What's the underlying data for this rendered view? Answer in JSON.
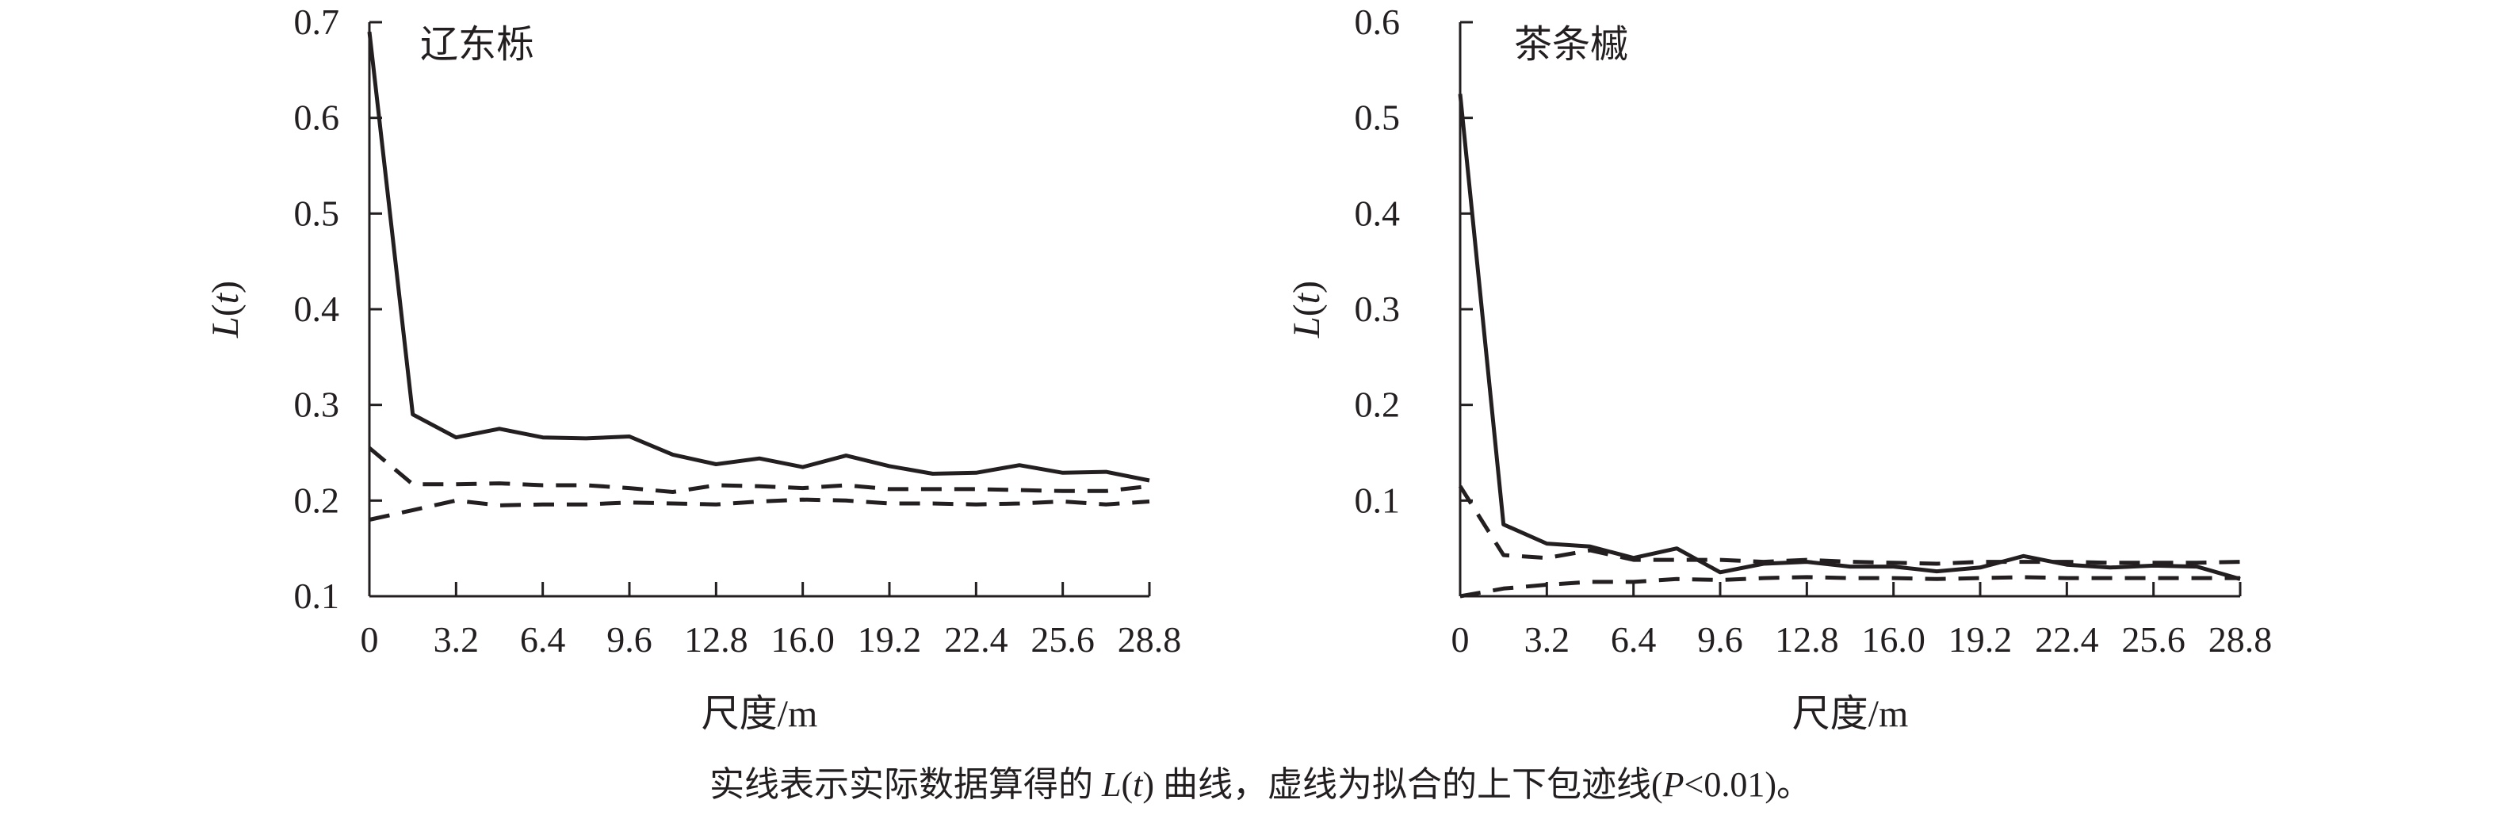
{
  "caption": {
    "text_before": "实线表示实际数据算得的 ",
    "L": "L",
    "open": "(",
    "t": "t",
    "close": ")",
    "text_after": " 曲线，虚线为拟合的上下包迹线(",
    "P": "P",
    "text_end": "<0.01)。"
  },
  "colors": {
    "line": "#231f20"
  },
  "chart_data": [
    {
      "type": "line",
      "title": "辽东栎",
      "xlabel": "尺度/m",
      "ylabel_L": "L",
      "ylabel_t": "t",
      "ylim": [
        0.1,
        0.7
      ],
      "yticks": [
        "0.1",
        "0.2",
        "0.3",
        "0.4",
        "0.5",
        "0.6",
        "0.7"
      ],
      "xticks": [
        "0",
        "3.2",
        "6.4",
        "9.6",
        "12.8",
        "16.0",
        "19.2",
        "22.4",
        "25.6",
        "28.8"
      ],
      "x": [
        0,
        1.6,
        3.2,
        4.8,
        6.4,
        8.0,
        9.6,
        11.2,
        12.8,
        14.4,
        16.0,
        17.6,
        19.2,
        20.8,
        22.4,
        24.0,
        25.6,
        27.2,
        28.8
      ],
      "series": [
        {
          "name": "actual",
          "style": "solid",
          "values": [
            0.69,
            0.29,
            0.266,
            0.275,
            0.266,
            0.265,
            0.267,
            0.248,
            0.238,
            0.244,
            0.235,
            0.247,
            0.236,
            0.228,
            0.229,
            0.237,
            0.229,
            0.23,
            0.221
          ]
        },
        {
          "name": "upper envelope",
          "style": "dashed",
          "values": [
            0.255,
            0.217,
            0.217,
            0.218,
            0.216,
            0.216,
            0.213,
            0.209,
            0.216,
            0.215,
            0.213,
            0.216,
            0.212,
            0.212,
            0.212,
            0.211,
            0.21,
            0.21,
            0.215
          ]
        },
        {
          "name": "lower envelope",
          "style": "dashed",
          "values": [
            0.18,
            0.19,
            0.2,
            0.195,
            0.196,
            0.196,
            0.198,
            0.197,
            0.196,
            0.199,
            0.201,
            0.2,
            0.197,
            0.197,
            0.196,
            0.197,
            0.199,
            0.196,
            0.199
          ]
        }
      ]
    },
    {
      "type": "line",
      "title": "茶条槭",
      "xlabel": "尺度/m",
      "ylabel_L": "L",
      "ylabel_t": "t",
      "ylim": [
        0,
        0.6
      ],
      "yticks": [
        "",
        "0.1",
        "0.2",
        "0.3",
        "0.4",
        "0.5",
        "0.6"
      ],
      "xticks": [
        "0",
        "3.2",
        "6.4",
        "9.6",
        "12.8",
        "16.0",
        "19.2",
        "22.4",
        "25.6",
        "28.8"
      ],
      "x": [
        0,
        1.6,
        3.2,
        4.8,
        6.4,
        8.0,
        9.6,
        11.2,
        12.8,
        14.4,
        16.0,
        17.6,
        19.2,
        20.8,
        22.4,
        24.0,
        25.6,
        27.2,
        28.8
      ],
      "series": [
        {
          "name": "actual",
          "style": "solid",
          "values": [
            0.525,
            0.075,
            0.055,
            0.052,
            0.04,
            0.05,
            0.025,
            0.034,
            0.036,
            0.031,
            0.031,
            0.026,
            0.03,
            0.042,
            0.033,
            0.03,
            0.032,
            0.031,
            0.018
          ]
        },
        {
          "name": "upper envelope",
          "style": "dashed",
          "values": [
            0.115,
            0.043,
            0.04,
            0.048,
            0.038,
            0.038,
            0.038,
            0.036,
            0.038,
            0.036,
            0.035,
            0.034,
            0.036,
            0.036,
            0.036,
            0.035,
            0.035,
            0.035,
            0.036
          ]
        },
        {
          "name": "lower envelope",
          "style": "dashed",
          "values": [
            0.0,
            0.008,
            0.012,
            0.015,
            0.015,
            0.018,
            0.017,
            0.019,
            0.02,
            0.019,
            0.019,
            0.018,
            0.019,
            0.02,
            0.019,
            0.019,
            0.019,
            0.019,
            0.019
          ]
        }
      ]
    }
  ]
}
